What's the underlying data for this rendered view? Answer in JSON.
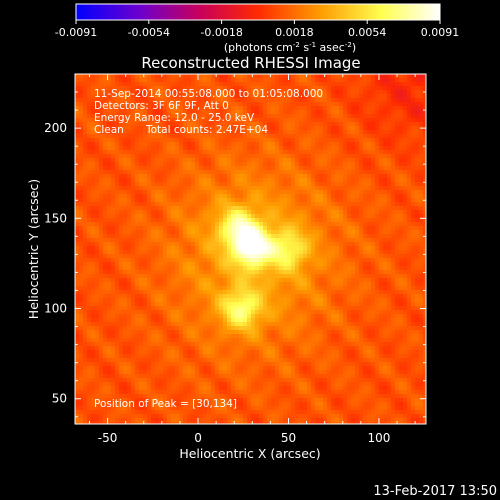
{
  "chart_data": {
    "type": "heatmap",
    "title": "Reconstructed RHESSI Image",
    "xlabel": "Heliocentric X (arcsec)",
    "ylabel": "Heliocentric Y (arcsec)",
    "xlim": [
      -68,
      126
    ],
    "ylim": [
      36,
      230
    ],
    "x_ticks": [
      -50,
      0,
      50,
      100
    ],
    "y_ticks": [
      50,
      100,
      150,
      200
    ],
    "colorbar": {
      "ticks": [
        "-0.0091",
        "-0.0054",
        "-0.0018",
        "0.0018",
        "0.0054",
        "0.0091"
      ],
      "unit_label": "(photons cm",
      "unit_sup1": "-2",
      "unit_mid": " s",
      "unit_sup2": "-1",
      "unit_end": " asec",
      "unit_sup3": "-2",
      "unit_close": ")",
      "colormap": [
        "#0000ff",
        "#6a00d0",
        "#c8005a",
        "#ff2a00",
        "#ff9b00",
        "#ffff50",
        "#ffffff"
      ]
    },
    "annotations": {
      "time_range": "11-Sep-2014 00:55:08.000 to 01:05:08.000",
      "detectors": "Detectors: 3F 6F 9F, Att 0",
      "energy": "Energy Range: 12.0 - 25.0 keV",
      "method": "Clean",
      "counts": "Total counts: 2.47E+04",
      "peak": "Position of Peak = [30,134]"
    },
    "sources": [
      {
        "x": 30,
        "y": 134,
        "intensity": 1.0
      },
      {
        "x": 22,
        "y": 145,
        "intensity": 0.7
      },
      {
        "x": 50,
        "y": 133,
        "intensity": 0.55
      },
      {
        "x": 24,
        "y": 100,
        "intensity": 0.72
      }
    ],
    "background_level": 0.25
  },
  "footer": {
    "date": "13-Feb-2017 13:50"
  }
}
